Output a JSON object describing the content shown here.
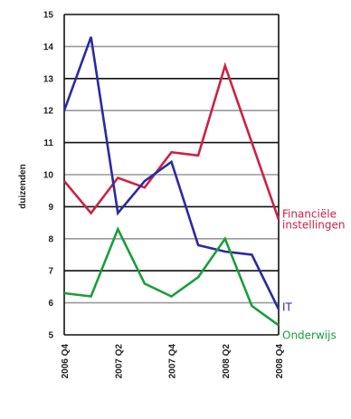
{
  "chart_data": {
    "type": "line",
    "title": "",
    "xlabel": "",
    "ylabel": "duizenden",
    "ylim": [
      5,
      15
    ],
    "yticks": [
      5,
      6,
      7,
      8,
      9,
      10,
      11,
      12,
      13,
      14,
      15
    ],
    "grid": true,
    "legend_placement": "right, at line ends",
    "x_tick_labels": [
      "2006 Q4",
      "2007 Q2",
      "2007 Q4",
      "2008 Q2",
      "2008 Q4"
    ],
    "x": [
      "2006 Q4",
      "2007 Q1",
      "2007 Q2",
      "2007 Q3",
      "2007 Q4",
      "2008 Q1",
      "2008 Q2",
      "2008 Q3",
      "2008 Q4"
    ],
    "series": [
      {
        "name": "Financiële instellingen",
        "label_lines": [
          "Financiële",
          "instellingen"
        ],
        "color": "#cc2244",
        "values": [
          9.8,
          8.8,
          9.9,
          9.6,
          10.7,
          10.6,
          13.4,
          11.0,
          8.6
        ]
      },
      {
        "name": "IT",
        "label_lines": [
          "IT"
        ],
        "color": "#2a2aa6",
        "values": [
          12.0,
          14.3,
          8.8,
          9.8,
          10.4,
          7.8,
          7.6,
          7.5,
          5.8
        ]
      },
      {
        "name": "Onderwijs",
        "label_lines": [
          "Onderwijs"
        ],
        "color": "#1a9e3a",
        "values": [
          6.3,
          6.2,
          8.3,
          6.6,
          6.2,
          6.8,
          8.0,
          5.9,
          5.3
        ]
      }
    ]
  }
}
